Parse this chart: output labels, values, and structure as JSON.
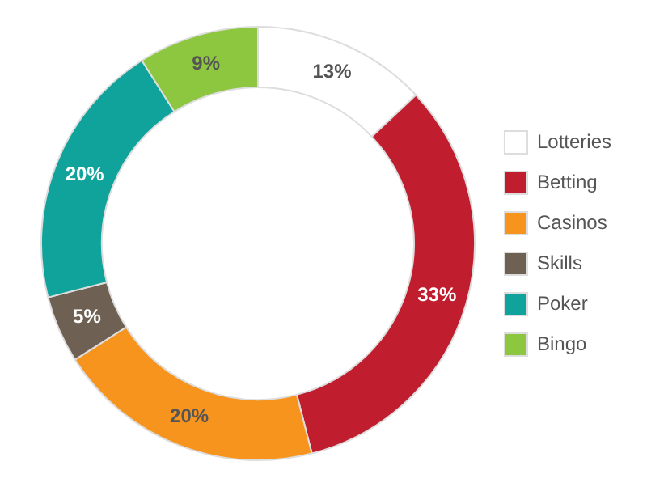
{
  "chart_data": {
    "type": "donut",
    "categories": [
      "Lotteries",
      "Betting",
      "Casinos",
      "Skills",
      "Poker",
      "Bingo"
    ],
    "values": [
      13,
      33,
      20,
      5,
      20,
      9
    ],
    "colors": [
      "#ffffff",
      "#c01d2e",
      "#f7941d",
      "#6e6153",
      "#10a39b",
      "#8dc63f"
    ],
    "value_labels": [
      "13%",
      "33%",
      "20%",
      "5%",
      "20%",
      "9%"
    ],
    "legend": "right"
  }
}
